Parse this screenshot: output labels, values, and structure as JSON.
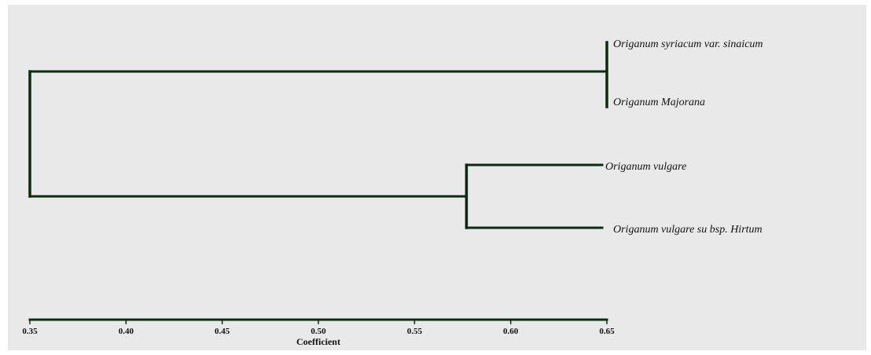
{
  "chart_data": {
    "type": "dendrogram",
    "xlabel": "Coefficient",
    "xlim": [
      0.35,
      0.65
    ],
    "ticks": [
      "0.35",
      "0.40",
      "0.45",
      "0.50",
      "0.55",
      "0.60",
      "0.65"
    ],
    "tick_values": [
      0.35,
      0.4,
      0.45,
      0.5,
      0.55,
      0.6,
      0.65
    ],
    "leaves": [
      "Origanum syriacum var. sinaicum",
      "Origanum Majorana",
      "Origanum vulgare",
      "Origanum vulgare su bsp. Hirtum"
    ],
    "merges": [
      {
        "children": [
          "Origanum syriacum var. sinaicum",
          "Origanum Majorana"
        ],
        "height": 0.65
      },
      {
        "children": [
          "Origanum vulgare",
          "Origanum vulgare su bsp. Hirtum"
        ],
        "height": 0.577
      },
      {
        "children": [
          "cluster-1",
          "cluster-2"
        ],
        "height": 0.35
      }
    ],
    "grid": false,
    "line_color": "#0e2a0e"
  }
}
